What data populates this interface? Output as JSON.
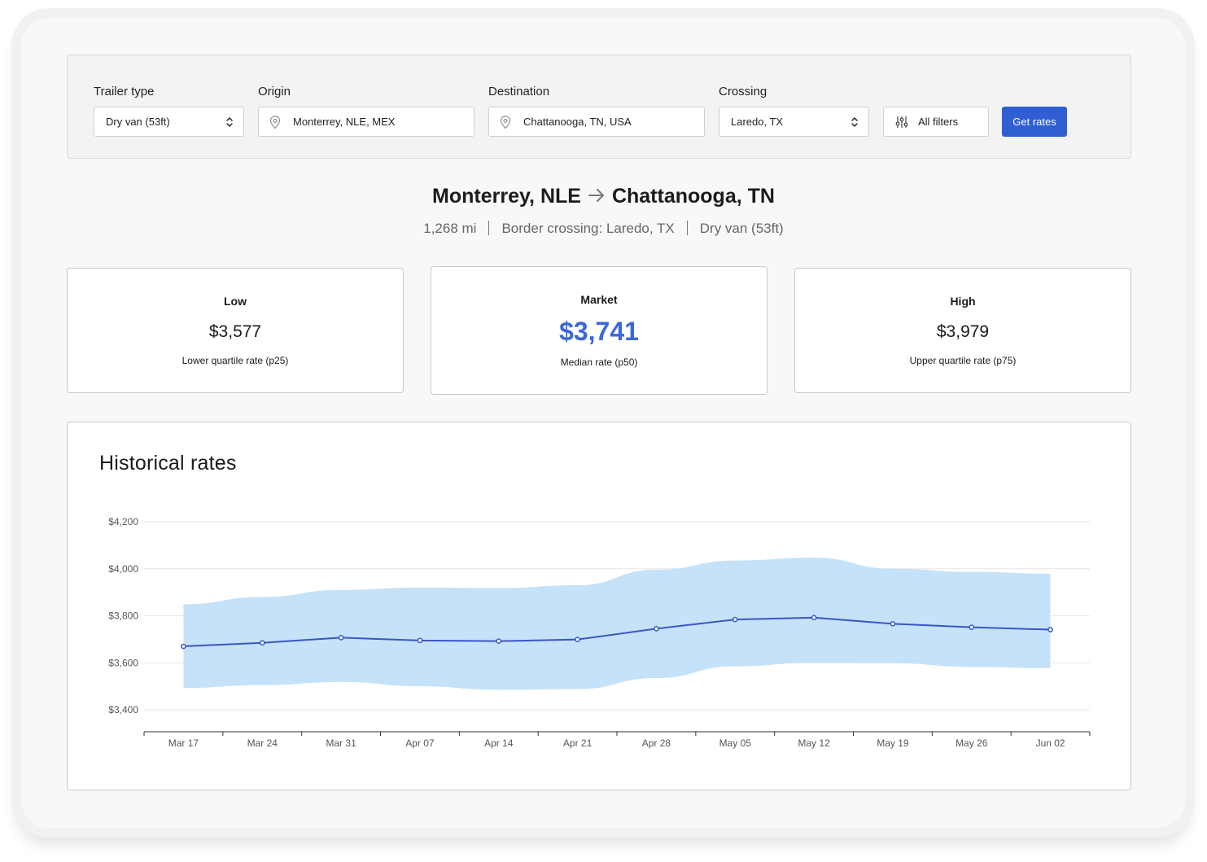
{
  "filters": {
    "trailer_type": {
      "label": "Trailer type",
      "value": "Dry van (53ft)"
    },
    "origin": {
      "label": "Origin",
      "value": "Monterrey, NLE, MEX"
    },
    "destination": {
      "label": "Destination",
      "value": "Chattanooga, TN, USA"
    },
    "crossing": {
      "label": "Crossing",
      "value": "Laredo, TX"
    },
    "all_filters_label": "All filters",
    "get_rates_label": "Get rates"
  },
  "route": {
    "origin": "Monterrey, NLE",
    "destination": "Chattanooga, TN",
    "distance": "1,268 mi",
    "border_crossing": "Border crossing: Laredo, TX",
    "trailer": "Dry van (53ft)"
  },
  "stats": {
    "low": {
      "label": "Low",
      "value": "$3,577",
      "sub": "Lower quartile rate (p25)"
    },
    "market": {
      "label": "Market",
      "value": "$3,741",
      "sub": "Median rate (p50)",
      "color": "#3b67d8"
    },
    "high": {
      "label": "High",
      "value": "$3,979",
      "sub": "Upper quartile rate (p75)"
    }
  },
  "historical": {
    "title": "Historical rates"
  },
  "chart_data": {
    "type": "line",
    "title": "Historical rates",
    "x": [
      "Mar 17",
      "Mar 24",
      "Mar 31",
      "Apr 07",
      "Apr 14",
      "Apr 21",
      "Apr 28",
      "May 05",
      "May 12",
      "May 19",
      "May 26",
      "Jun 02"
    ],
    "y_ticks": [
      "$3,400",
      "$3,600",
      "$3,800",
      "$4,000",
      "$4,200"
    ],
    "ylim": [
      3400,
      4200
    ],
    "grid": true,
    "series": [
      {
        "values": [
          3670,
          3685,
          3707,
          3695,
          3692,
          3699,
          3745,
          3784,
          3792,
          3766,
          3751,
          3741
        ],
        "color": "#3a56c5"
      }
    ],
    "band": {
      "upper": [
        3849,
        3880,
        3910,
        3920,
        3918,
        3930,
        3996,
        4035,
        4047,
        4000,
        3987,
        3979
      ],
      "lower": [
        3493,
        3505,
        3518,
        3500,
        3485,
        3488,
        3535,
        3585,
        3600,
        3598,
        3582,
        3577
      ],
      "color": "#c5e2f8"
    }
  }
}
